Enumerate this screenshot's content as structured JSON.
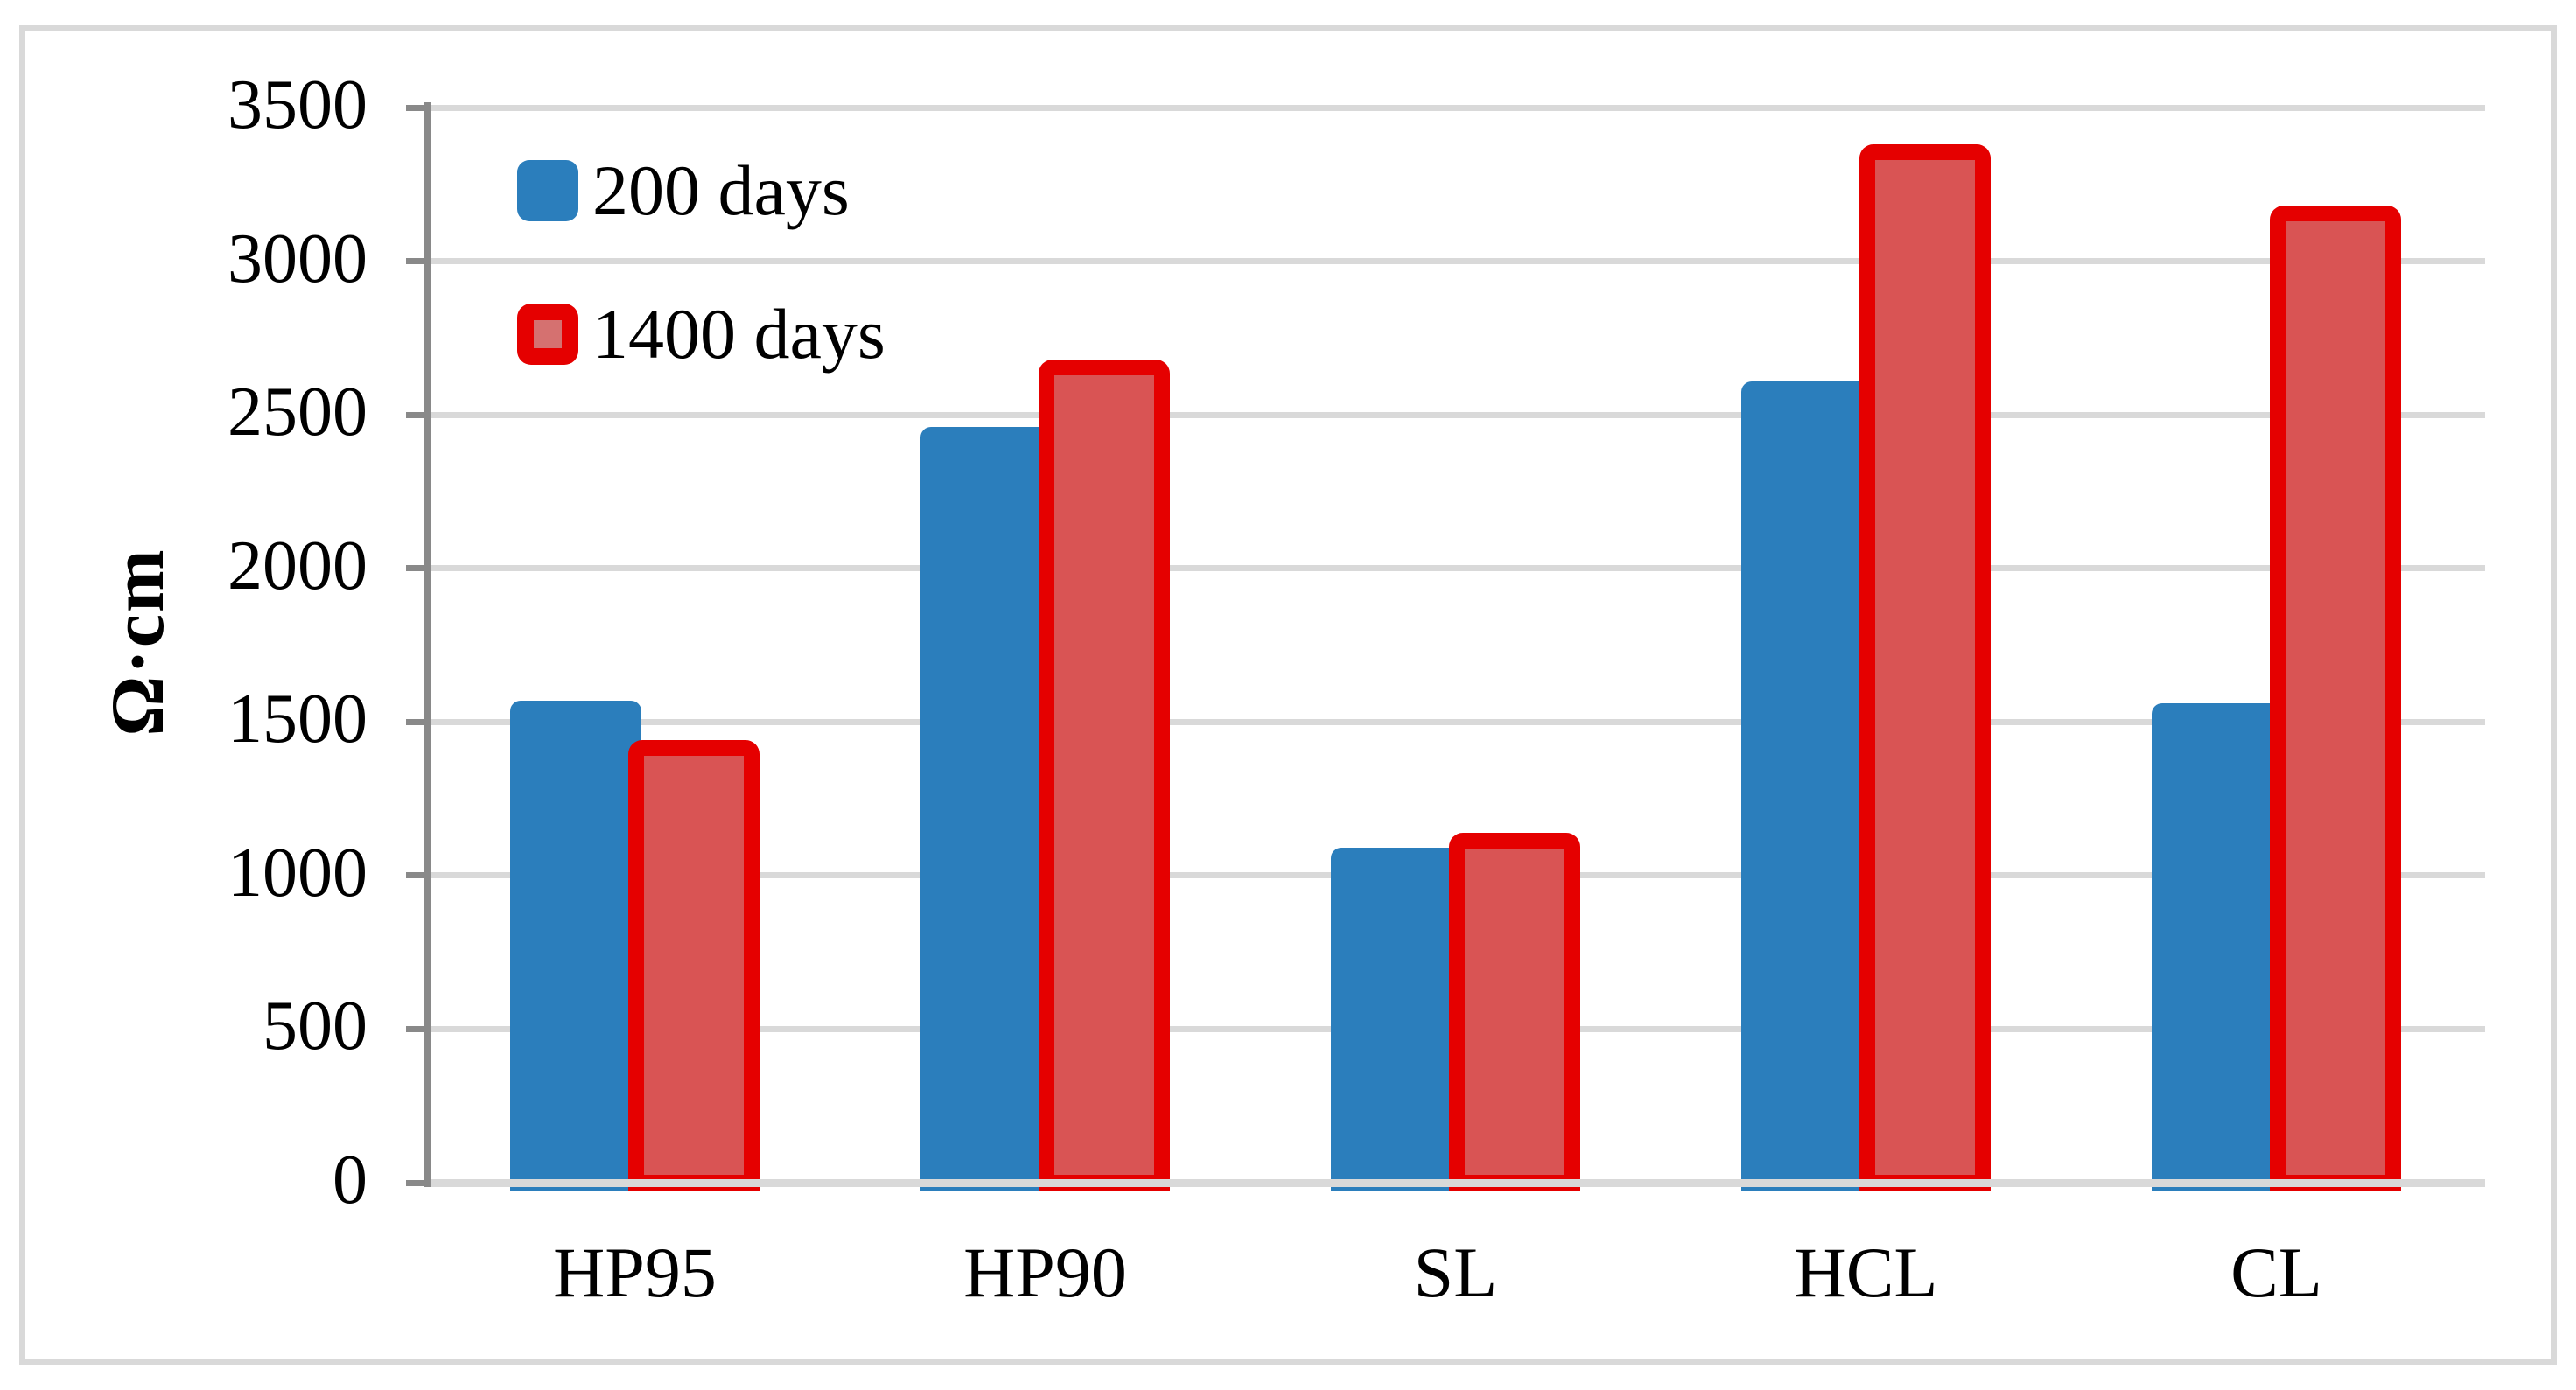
{
  "chart_data": {
    "type": "bar",
    "title": "",
    "xlabel": "",
    "ylabel": "Ω·cm",
    "categories": [
      "HP95",
      "HP90",
      "SL",
      "HCL",
      "CL"
    ],
    "series": [
      {
        "name": "200 days",
        "values": [
          1570,
          2460,
          1090,
          2610,
          1560
        ]
      },
      {
        "name": "1400 days",
        "values": [
          1440,
          2680,
          1140,
          3380,
          3180
        ]
      }
    ],
    "ylim": [
      0,
      3500
    ],
    "ytick_step": 500,
    "yticks": [
      "0",
      "500",
      "1000",
      "1500",
      "2000",
      "2500",
      "3000",
      "3500"
    ],
    "grid": "horizontal-only",
    "legend_position": "top-left-inside",
    "colors": {
      "series_200_days_fill": "#2b7ebc",
      "series_1400_days_fill": "#d95454",
      "series_1400_days_border": "#e50000",
      "legend_1400_inner": "#d57170",
      "gridline": "#d9d9d9",
      "axis": "#898989",
      "frame_border": "#d9d9d9",
      "text": "#000000"
    }
  }
}
